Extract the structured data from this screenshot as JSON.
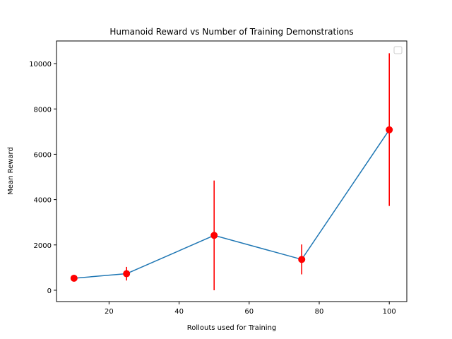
{
  "chart_data": {
    "type": "line",
    "title": "Humanoid Reward vs Number of Training Demonstrations",
    "xlabel": "Rollouts used for Training",
    "ylabel": "Mean Reward",
    "xlim": [
      5,
      105
    ],
    "ylim": [
      -500,
      11000
    ],
    "x_ticks": [
      20,
      40,
      60,
      80,
      100
    ],
    "y_ticks": [
      0,
      2000,
      4000,
      6000,
      8000,
      10000
    ],
    "grid": false,
    "legend": {
      "placement": "top-right",
      "entries": []
    },
    "series": [
      {
        "x": [
          10,
          25,
          50,
          75,
          100
        ],
        "y": [
          530,
          730,
          2420,
          1360,
          7080
        ],
        "yerr_low": [
          480,
          430,
          0,
          700,
          3720
        ],
        "yerr_high": [
          580,
          1030,
          4840,
          2020,
          10460
        ],
        "line_color": "#1f77b4",
        "marker_color": "#ff0000",
        "errorbar_color": "#ff0000"
      }
    ]
  }
}
